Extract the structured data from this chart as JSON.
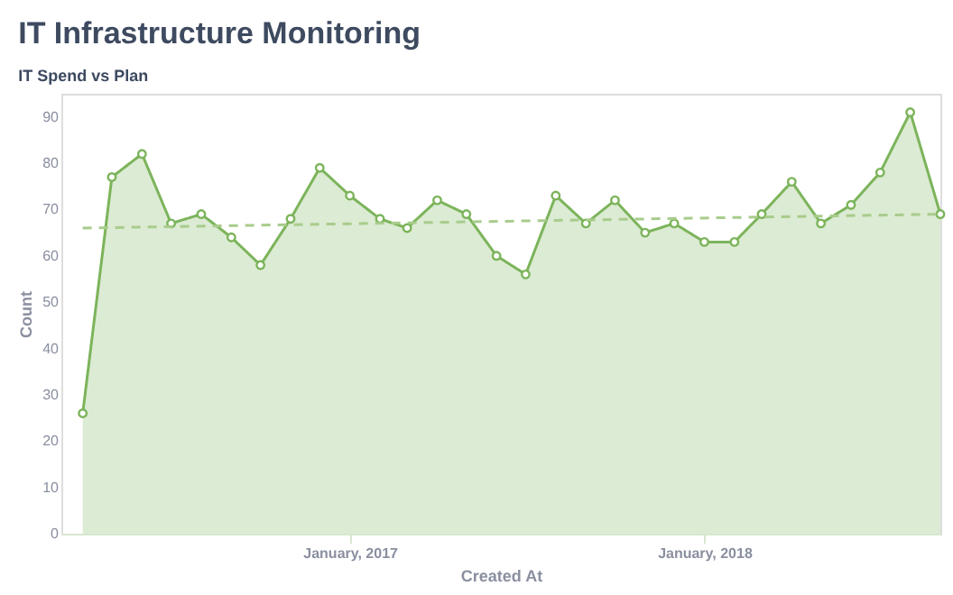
{
  "chart_data": {
    "type": "area",
    "title": "IT Infrastructure Monitoring",
    "subtitle": "IT Spend vs Plan",
    "xlabel": "Created At",
    "ylabel": "Count",
    "x": [
      "2016-04",
      "2016-05",
      "2016-06",
      "2016-07",
      "2016-08",
      "2016-09",
      "2016-10",
      "2016-11",
      "2016-12",
      "2017-01",
      "2017-02",
      "2017-03",
      "2017-04",
      "2017-05",
      "2017-06",
      "2017-07",
      "2017-08",
      "2017-09",
      "2017-10",
      "2017-11",
      "2017-12",
      "2018-01",
      "2018-02",
      "2018-03",
      "2018-04",
      "2018-05",
      "2018-06",
      "2018-07",
      "2018-08",
      "2018-09"
    ],
    "series": [
      {
        "color": "#7cb45b",
        "marker": "circle",
        "line_style": "solid",
        "values": [
          26,
          77,
          82,
          67,
          69,
          64,
          58,
          68,
          79,
          73,
          68,
          66,
          72,
          69,
          60,
          56,
          73,
          67,
          72,
          65,
          67,
          63,
          63,
          69,
          76,
          67,
          71,
          78,
          91,
          69
        ]
      },
      {
        "type": "line",
        "color": "#a8cc8c",
        "marker": "none",
        "line_style": "dashed",
        "x": [
          "2016-04",
          "2018-09"
        ],
        "values": [
          66,
          69
        ]
      }
    ],
    "xlim": [
      "2016-03-10",
      "2018-09"
    ],
    "xticks": [
      {
        "value": "2017-01",
        "label": "January, 2017"
      },
      {
        "value": "2018-01",
        "label": "January, 2018"
      }
    ],
    "ylim": [
      0,
      95
    ],
    "yticks": [
      0,
      10,
      20,
      30,
      40,
      50,
      60,
      70,
      80,
      90
    ],
    "grid": false
  }
}
